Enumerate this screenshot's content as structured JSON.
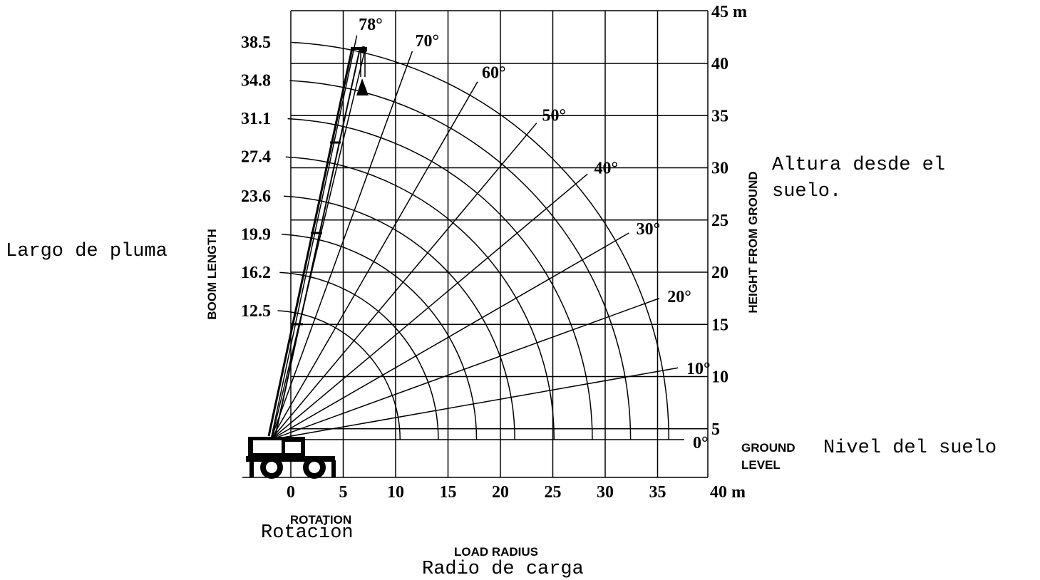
{
  "left_axis": {
    "title": "BOOM LENGTH",
    "note": "Largo de pluma",
    "labels": [
      "38.5",
      "34.8",
      "31.1",
      "27.4",
      "23.6",
      "19.9",
      "16.2",
      "12.5"
    ]
  },
  "right_axis": {
    "title": "HEIGHT FROM GROUND",
    "note": [
      "Altura desde el",
      "suelo."
    ],
    "labels": [
      "45 m",
      "40",
      "35",
      "30",
      "25",
      "20",
      "15",
      "10",
      "5"
    ]
  },
  "bottom_axis": {
    "title": "LOAD RADIUS",
    "note": "Radio de carga",
    "labels": [
      "0",
      "5",
      "10",
      "15",
      "20",
      "25",
      "30",
      "35",
      "40 m"
    ]
  },
  "angles": [
    "78°",
    "70°",
    "60°",
    "50°",
    "40°",
    "30°",
    "20°",
    "10°",
    "0°"
  ],
  "rotation": {
    "title": "ROTATION",
    "note": "Rotacion"
  },
  "ground": {
    "title": [
      "GROUND",
      "LEVEL"
    ],
    "note": "Nivel del suelo"
  }
}
